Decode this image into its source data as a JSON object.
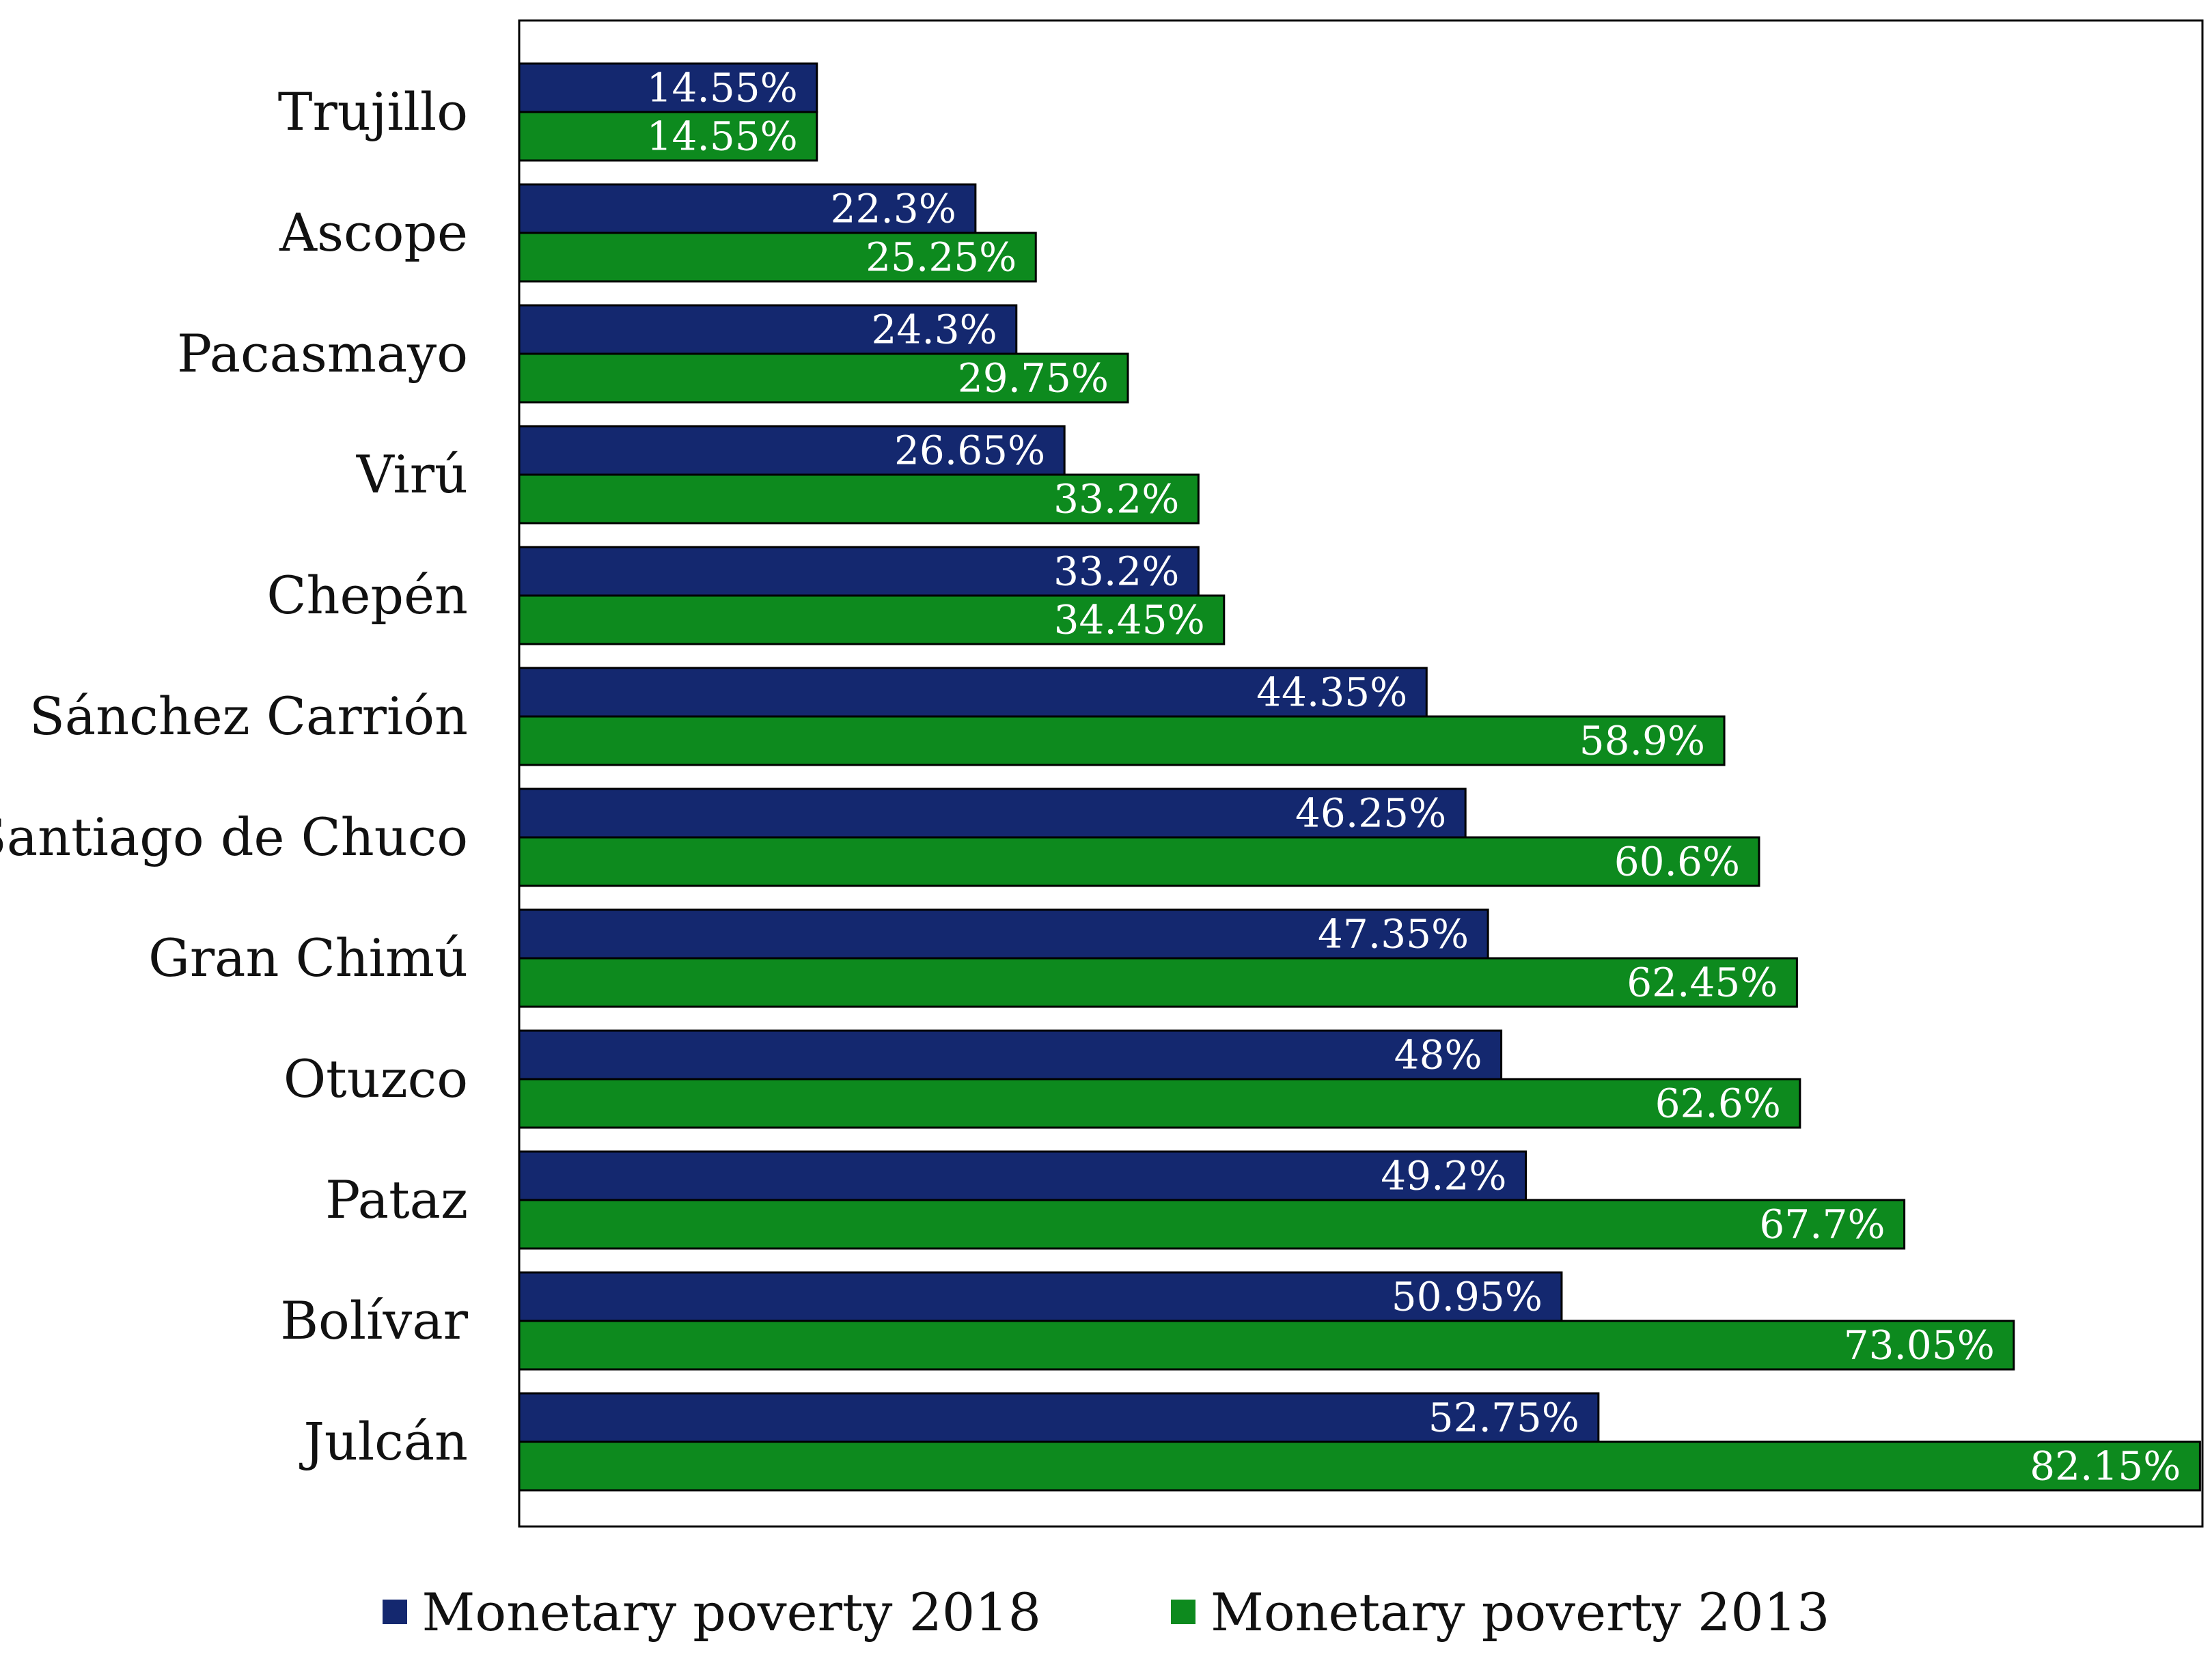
{
  "chart_data": {
    "type": "bar",
    "orientation": "horizontal",
    "title": "",
    "xlabel": "",
    "ylabel": "",
    "xlim": [
      0,
      90
    ],
    "grid": false,
    "legend_position": "bottom-center",
    "categories": [
      "Trujillo",
      "Ascope",
      "Pacasmayo",
      "Virú",
      "Chepén",
      "Sánchez Carrión",
      "Santiago de Chuco",
      "Gran Chimú",
      "Otuzco",
      "Pataz",
      "Bolívar",
      "Julcán"
    ],
    "series": [
      {
        "name": "Monetary poverty 2018",
        "color": "#14286f",
        "values": [
          14.55,
          22.3,
          24.3,
          26.65,
          33.2,
          44.35,
          46.25,
          47.35,
          48,
          49.2,
          50.95,
          52.75
        ],
        "labels": [
          "14.55%",
          "22.3%",
          "24.3%",
          "26.65%",
          "33.2%",
          "44.35%",
          "46.25%",
          "47.35%",
          "48%",
          "49.2%",
          "50.95%",
          "52.75%"
        ]
      },
      {
        "name": "Monetary poverty 2013",
        "color": "#0d8a1e",
        "values": [
          14.55,
          25.25,
          29.75,
          33.2,
          34.45,
          58.9,
          60.6,
          62.45,
          62.6,
          67.7,
          73.05,
          82.15
        ],
        "labels": [
          "14.55%",
          "25.25%",
          "29.75%",
          "33.2%",
          "34.45%",
          "58.9%",
          "60.6%",
          "62.45%",
          "62.6%",
          "67.7%",
          "73.05%",
          "82.15%"
        ]
      }
    ]
  }
}
